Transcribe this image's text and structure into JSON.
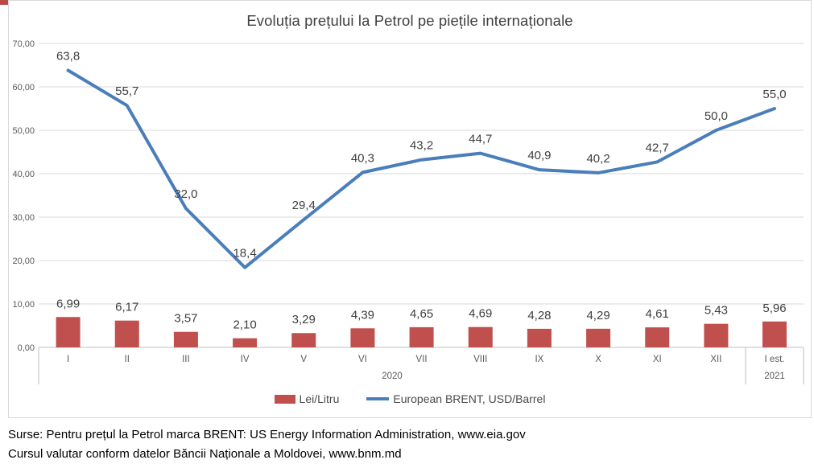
{
  "chart": {
    "title": "Evoluția prețului la Petrol pe piețile internaționale"
  },
  "chart_data": {
    "type": "combo-bar-line",
    "title": "Evoluția prețului la Petrol pe piețile internaționale",
    "categories": [
      "I",
      "II",
      "III",
      "IV",
      "V",
      "VI",
      "VII",
      "VIII",
      "IX",
      "X",
      "XI",
      "XII",
      "I est."
    ],
    "category_groups": [
      {
        "label": "2020",
        "span": 12
      },
      {
        "label": "2021",
        "span": 1
      }
    ],
    "series": [
      {
        "name": "Lei/Litru",
        "type": "bar",
        "color": "#c0504d",
        "values": [
          6.99,
          6.17,
          3.57,
          2.1,
          3.29,
          4.39,
          4.65,
          4.69,
          4.28,
          4.29,
          4.61,
          5.43,
          5.96
        ],
        "labels": [
          "6,99",
          "6,17",
          "3,57",
          "2,10",
          "3,29",
          "4,39",
          "4,65",
          "4,69",
          "4,28",
          "4,29",
          "4,61",
          "5,43",
          "5,96"
        ]
      },
      {
        "name": "European BRENT, USD/Barrel",
        "type": "line",
        "color": "#4a7ebb",
        "values": [
          63.8,
          55.7,
          32.0,
          18.4,
          29.4,
          40.3,
          43.2,
          44.7,
          40.9,
          40.2,
          42.7,
          50.0,
          55.0
        ],
        "labels": [
          "63,8",
          "55,7",
          "32,0",
          "18,4",
          "29,4",
          "40,3",
          "43,2",
          "44,7",
          "40,9",
          "40,2",
          "42,7",
          "50,0",
          "55,0"
        ]
      }
    ],
    "ylim": [
      0,
      70
    ],
    "ytick_step": 10,
    "ytick_labels": [
      "0,00",
      "10,00",
      "20,00",
      "30,00",
      "40,00",
      "50,00",
      "60,00",
      "70,00"
    ],
    "grid": true,
    "legend_position": "bottom"
  },
  "legend": {
    "items": [
      {
        "label": "Lei/Litru",
        "swatch": "bar",
        "color": "#c0504d"
      },
      {
        "label": "European BRENT, USD/Barrel",
        "swatch": "line",
        "color": "#4a7ebb"
      }
    ]
  },
  "sources": {
    "line1": "Surse: Pentru prețul la Petrol marca BRENT: US Energy Information Administration, www.eia.gov",
    "line2": "Cursul valutar conform datelor Băncii Naționale a Moldovei, www.bnm.md"
  },
  "colors": {
    "bar": "#c0504d",
    "line": "#4a7ebb",
    "gridline": "#d9d9d9",
    "axis": "#bfbfbf",
    "title_text": "#404040",
    "data_label_text": "#404040",
    "tick_text": "#595959"
  }
}
